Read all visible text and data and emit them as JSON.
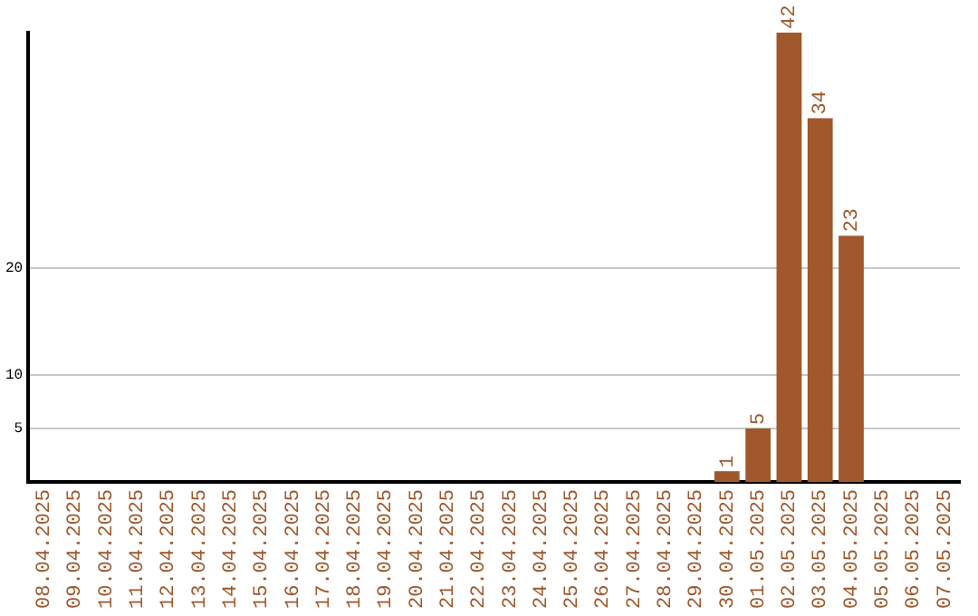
{
  "chart_data": {
    "type": "bar",
    "categories": [
      "08.04.2025",
      "09.04.2025",
      "10.04.2025",
      "11.04.2025",
      "12.04.2025",
      "13.04.2025",
      "14.04.2025",
      "15.04.2025",
      "16.04.2025",
      "17.04.2025",
      "18.04.2025",
      "19.04.2025",
      "20.04.2025",
      "21.04.2025",
      "22.04.2025",
      "23.04.2025",
      "24.04.2025",
      "25.04.2025",
      "26.04.2025",
      "27.04.2025",
      "28.04.2025",
      "29.04.2025",
      "30.04.2025",
      "01.05.2025",
      "02.05.2025",
      "03.05.2025",
      "04.05.2025",
      "05.05.2025",
      "06.05.2025",
      "07.05.2025"
    ],
    "values": [
      0,
      0,
      0,
      0,
      0,
      0,
      0,
      0,
      0,
      0,
      0,
      0,
      0,
      0,
      0,
      0,
      0,
      0,
      0,
      0,
      0,
      0,
      1,
      5,
      42,
      34,
      23,
      0,
      0,
      0
    ],
    "value_labels": [
      null,
      null,
      null,
      null,
      null,
      null,
      null,
      null,
      null,
      null,
      null,
      null,
      null,
      null,
      null,
      null,
      null,
      null,
      null,
      null,
      null,
      null,
      "1",
      "5",
      "42",
      "34",
      "23",
      null,
      null,
      null
    ],
    "color": "#a0572b",
    "ylim": [
      0,
      42
    ],
    "yticks": [
      5,
      10,
      20
    ],
    "grid": "y",
    "legend": false
  }
}
